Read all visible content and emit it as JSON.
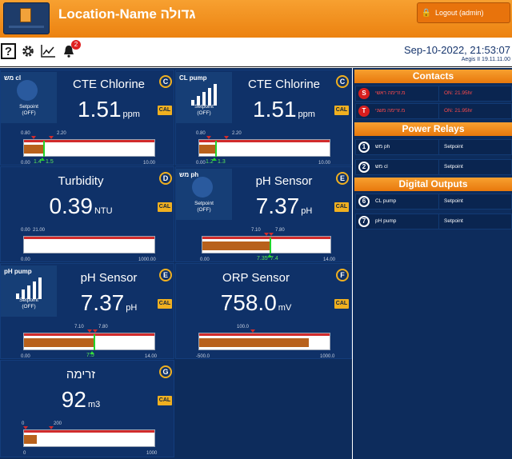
{
  "header": {
    "title": "Location-Name גדולה",
    "logout_label": "Logout (admin)"
  },
  "toolbar": {
    "help_label": "?",
    "notification_count": "2",
    "datetime": "Sep-10-2022, 21:53:07",
    "version": "Aegis II 19.11.11.00"
  },
  "tiles": [
    {
      "title": "CTE Chlorine",
      "value": "1.51",
      "unit": "ppm",
      "badge": "C",
      "cal": "CAL",
      "relay": {
        "name": "מש cl",
        "setpoint": "Setpoint",
        "state": "(OFF)"
      },
      "bar": {
        "min": "0.00",
        "max": "10.00",
        "low_sp": "0.80",
        "high_sp": "2.20",
        "current": "1.4",
        "target": "1.5"
      }
    },
    {
      "title": "CTE Chlorine",
      "value": "1.51",
      "unit": "ppm",
      "badge": "C",
      "cal": "CAL",
      "relay": {
        "name": "CL pump",
        "setpoint": "Setpoint",
        "state": "(OFF)"
      },
      "bar": {
        "min": "0.00",
        "max": "10.00",
        "low_sp": "0.80",
        "high_sp": "2.20",
        "current": "1.2",
        "target": "1.3"
      }
    },
    {
      "title": "Turbidity",
      "value": "0.39",
      "unit": "NTU",
      "badge": "D",
      "cal": "CAL",
      "bar": {
        "min": "0.00",
        "max": "1000.00",
        "low_sp": "0.00",
        "high_sp": "21.00"
      }
    },
    {
      "title": "pH Sensor",
      "value": "7.37",
      "unit": "pH",
      "badge": "E",
      "cal": "CAL",
      "relay": {
        "name": "מש ph",
        "setpoint": "Setpoint",
        "state": "(OFF)"
      },
      "bar": {
        "min": "0.00",
        "max": "14.00",
        "low_sp": "7.10",
        "high_sp": "7.80",
        "current": "7.35",
        "target": "7.4"
      }
    },
    {
      "title": "pH Sensor",
      "value": "7.37",
      "unit": "pH",
      "badge": "E",
      "cal": "CAL",
      "relay": {
        "name": "pH pump",
        "setpoint": "Setpoint",
        "state": "(OFF)"
      },
      "bar": {
        "min": "0.00",
        "max": "14.00",
        "low_sp": "7.10",
        "high_sp": "7.80",
        "current": "7.5"
      }
    },
    {
      "title": "ORP Sensor",
      "value": "758.0",
      "unit": "mV",
      "badge": "F",
      "cal": "CAL",
      "bar": {
        "min": "-500.0",
        "max": "1000.0",
        "high_sp": "100.0"
      }
    },
    {
      "title": "זרימה",
      "value": "92",
      "unit": "m3",
      "badge": "G",
      "cal": "CAL",
      "bar": {
        "min": "0",
        "max": "1000",
        "low_sp": "0",
        "high_sp": "200"
      }
    }
  ],
  "side": {
    "contacts_title": "Contacts",
    "contacts": [
      {
        "badge": "S",
        "name": "מ.זרימה ראשי",
        "status": "ON: 21.95hr"
      },
      {
        "badge": "T",
        "name": "מ.זרימה משני",
        "status": "ON: 21.95hr"
      }
    ],
    "relays_title": "Power Relays",
    "relays": [
      {
        "badge": "1",
        "name": "מש ph",
        "status": "Setpoint"
      },
      {
        "badge": "2",
        "name": "מש cl",
        "status": "Setpoint"
      }
    ],
    "outputs_title": "Digital Outputs",
    "outputs": [
      {
        "badge": "6",
        "name": "CL pump",
        "status": "Setpoint"
      },
      {
        "badge": "7",
        "name": "pH pump",
        "status": "Setpoint"
      }
    ]
  },
  "colors": {
    "accent": "#f0b020",
    "header": "#ef8a1a",
    "panel": "#0f3168",
    "fill": "#b8611c",
    "marker": "#21d42c",
    "setpoint_line": "#d12b2b"
  }
}
